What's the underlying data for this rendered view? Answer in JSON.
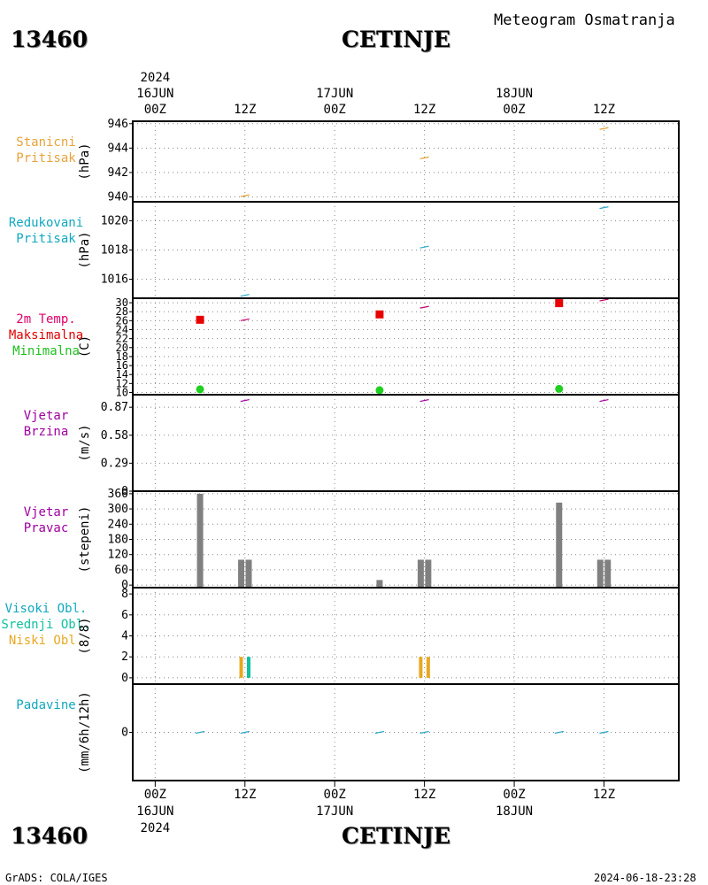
{
  "header": {
    "station_id": "13460",
    "station_name": "CETINJE",
    "product_title": "Meteogram Osmatranja"
  },
  "footer": {
    "station_id": "13460",
    "station_name": "CETINJE",
    "credit": "GrADS: COLA/IGES",
    "timestamp": "2024-06-18-23:28"
  },
  "time_axis": {
    "year": "2024",
    "ticks": [
      {
        "hour": 0,
        "label": "00Z",
        "date": "16JUN"
      },
      {
        "hour": 12,
        "label": "12Z",
        "date": ""
      },
      {
        "hour": 24,
        "label": "00Z",
        "date": "17JUN"
      },
      {
        "hour": 36,
        "label": "12Z",
        "date": ""
      },
      {
        "hour": 48,
        "label": "00Z",
        "date": "18JUN"
      },
      {
        "hour": 60,
        "label": "12Z",
        "date": ""
      }
    ],
    "range_hours": [
      -3,
      70
    ]
  },
  "chart_data": [
    {
      "type": "line",
      "panel": "station-pressure",
      "labels": [
        "Stanicni",
        "Pritisak"
      ],
      "ylabel": "(hPa)",
      "ylim": [
        939.6,
        946.2
      ],
      "yticks": [
        940,
        942,
        944,
        946
      ],
      "series": [
        {
          "color": "#e8a33a",
          "points": [
            [
              12,
              940.1
            ],
            [
              36,
              943.2
            ],
            [
              60,
              945.6
            ]
          ]
        }
      ]
    },
    {
      "type": "line",
      "panel": "reduced-pressure",
      "labels": [
        "Redukovani",
        "Pritisak"
      ],
      "ylabel": "(hPa)",
      "ylim": [
        1014.7,
        1021.3
      ],
      "yticks": [
        1016,
        1018,
        1020
      ],
      "series": [
        {
          "color": "#2aa8c8",
          "points": [
            [
              12,
              1014.9
            ],
            [
              36,
              1018.2
            ],
            [
              60,
              1020.9
            ]
          ]
        }
      ]
    },
    {
      "type": "scatter",
      "panel": "temperature",
      "labels": [
        "2m Temp.",
        "Maksimalna",
        "Minimalna"
      ],
      "label_colors": [
        "#e0006a",
        "#e00000",
        "#20c020"
      ],
      "ylabel": "(C)",
      "ylim": [
        9.5,
        31
      ],
      "yticks": [
        10,
        12,
        14,
        16,
        18,
        20,
        22,
        24,
        26,
        28,
        30
      ],
      "series": [
        {
          "kind": "temp",
          "color": "#c8006a",
          "points": [
            [
              12,
              26.2
            ],
            [
              36,
              29.0
            ],
            [
              60,
              30.6
            ]
          ]
        },
        {
          "kind": "max",
          "color": "#e80000",
          "points": [
            [
              6,
              26.2
            ],
            [
              30,
              27.4
            ],
            [
              54,
              29.9
            ]
          ]
        },
        {
          "kind": "min",
          "color": "#20d020",
          "points": [
            [
              6,
              10.7
            ],
            [
              30,
              10.5
            ],
            [
              54,
              10.8
            ]
          ]
        }
      ]
    },
    {
      "type": "line",
      "panel": "wind-speed",
      "labels": [
        "Vjetar",
        "Brzina"
      ],
      "label_colors": [
        "#a000a0",
        "#a000a0"
      ],
      "ylabel": "(m/s)",
      "ylim": [
        0,
        1.0
      ],
      "yticks": [
        0,
        0.29,
        0.58,
        0.87
      ],
      "series": [
        {
          "color": "#a000a0",
          "points": [
            [
              12,
              0.94
            ],
            [
              36,
              0.94
            ],
            [
              60,
              0.94
            ]
          ]
        }
      ]
    },
    {
      "type": "bar",
      "panel": "wind-direction",
      "labels": [
        "Vjetar",
        "Pravac"
      ],
      "label_colors": [
        "#a000a0",
        "#a000a0"
      ],
      "ylabel": "(stepeni)",
      "ylim": [
        -10,
        370
      ],
      "yticks": [
        0,
        60,
        120,
        180,
        240,
        300,
        360
      ],
      "bars": [
        {
          "x": 6,
          "value": 360
        },
        {
          "x": 11.5,
          "value": 100
        },
        {
          "x": 12.5,
          "value": 100
        },
        {
          "x": 30,
          "value": 20
        },
        {
          "x": 35.5,
          "value": 100
        },
        {
          "x": 36.5,
          "value": 100
        },
        {
          "x": 54,
          "value": 325
        },
        {
          "x": 59.5,
          "value": 100
        },
        {
          "x": 60.5,
          "value": 100
        }
      ]
    },
    {
      "type": "bar",
      "panel": "cloud-cover",
      "labels": [
        "Visoki Obl.",
        "Srednji Obl.",
        "Niski Obl."
      ],
      "label_colors": [
        "#10a8c0",
        "#10c0a0",
        "#e8a820"
      ],
      "ylabel": "(8/8)",
      "ylim": [
        -0.6,
        8.6
      ],
      "yticks": [
        0,
        2,
        4,
        6,
        8
      ],
      "bars": [
        {
          "x": 11.5,
          "value": 2,
          "layer": "low"
        },
        {
          "x": 12.5,
          "value": 2,
          "layer": "middle"
        },
        {
          "x": 35.5,
          "value": 2,
          "layer": "low"
        },
        {
          "x": 36.5,
          "value": 2,
          "layer": "low"
        }
      ]
    },
    {
      "type": "line",
      "panel": "precipitation",
      "labels": [
        "Padavine"
      ],
      "label_colors": [
        "#10a8c0"
      ],
      "ylabel": "(mm/6h/12h)",
      "ylim": [
        -5,
        5
      ],
      "yticks": [
        0
      ],
      "series": [
        {
          "color": "#2aa8c8",
          "points": [
            [
              6,
              0
            ],
            [
              12,
              0
            ],
            [
              30,
              0
            ],
            [
              36,
              0
            ],
            [
              54,
              0
            ],
            [
              60,
              0
            ]
          ]
        }
      ]
    }
  ]
}
